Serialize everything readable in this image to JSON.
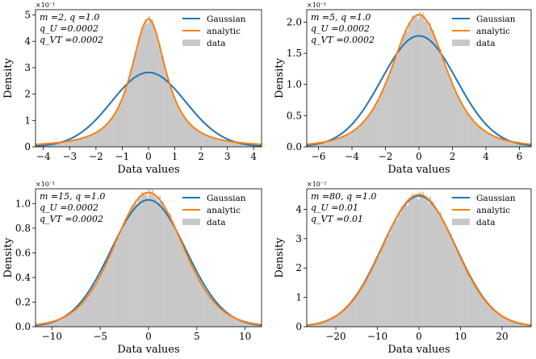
{
  "chart_data": [
    {
      "type": "line",
      "id": "panel-1",
      "annotation": [
        "m =2, q =1.0",
        "q_U =0.0002",
        "q_VT =0.0002"
      ],
      "multiplier": "×10⁻¹",
      "xlabel": "Data values",
      "ylabel": "Density",
      "xlim": [
        -4.3,
        4.3
      ],
      "ylim": [
        0,
        5.2
      ],
      "xticks": [
        -4,
        -3,
        -2,
        -1,
        0,
        1,
        2,
        3,
        4
      ],
      "yticks": [
        0,
        1,
        2,
        3,
        4,
        5
      ],
      "legend": [
        "Gaussian",
        "analytic",
        "data"
      ],
      "series": [
        {
          "name": "Gaussian",
          "kind": "gaussian",
          "sigma": 1.41,
          "peak": 2.82,
          "color": "#1f77b4"
        },
        {
          "name": "analytic",
          "kind": "heavy",
          "nu": 1.55,
          "scale": 0.75,
          "peak": 4.85,
          "color": "#ff7f0e"
        },
        {
          "name": "data",
          "kind": "hist",
          "color": "#c8c8c8"
        }
      ]
    },
    {
      "type": "line",
      "id": "panel-2",
      "annotation": [
        "m =5, q =1.0",
        "q_U =0.0002",
        "q_VT =0.0002"
      ],
      "multiplier": "×10⁻¹",
      "xlabel": "Data values",
      "ylabel": "Density",
      "xlim": [
        -6.7,
        6.7
      ],
      "ylim": [
        0,
        2.2
      ],
      "xticks": [
        -6,
        -4,
        -2,
        0,
        2,
        4,
        6
      ],
      "yticks": [
        0.0,
        0.5,
        1.0,
        1.5,
        2.0
      ],
      "legend": [
        "Gaussian",
        "analytic",
        "data"
      ],
      "series": [
        {
          "name": "Gaussian",
          "kind": "gaussian",
          "sigma": 2.24,
          "peak": 1.78,
          "color": "#1f77b4"
        },
        {
          "name": "analytic",
          "kind": "heavy",
          "nu": 4.0,
          "scale": 1.7,
          "peak": 2.12,
          "color": "#ff7f0e"
        },
        {
          "name": "data",
          "kind": "hist",
          "color": "#c8c8c8"
        }
      ]
    },
    {
      "type": "line",
      "id": "panel-3",
      "annotation": [
        "m =15, q =1.0",
        "q_U =0.0002",
        "q_VT =0.0002"
      ],
      "multiplier": "×10⁻¹",
      "xlabel": "Data values",
      "ylabel": "Density",
      "xlim": [
        -11.7,
        11.7
      ],
      "ylim": [
        0,
        1.12
      ],
      "xticks": [
        -10,
        -5,
        0,
        5,
        10
      ],
      "yticks": [
        0.0,
        0.2,
        0.4,
        0.6,
        0.8,
        1.0
      ],
      "legend": [
        "Gaussian",
        "analytic",
        "data"
      ],
      "series": [
        {
          "name": "Gaussian",
          "kind": "gaussian",
          "sigma": 3.87,
          "peak": 1.03,
          "color": "#1f77b4"
        },
        {
          "name": "analytic",
          "kind": "heavy",
          "nu": 14.0,
          "scale": 3.6,
          "peak": 1.09,
          "color": "#ff7f0e"
        },
        {
          "name": "data",
          "kind": "hist",
          "color": "#c8c8c8"
        }
      ]
    },
    {
      "type": "line",
      "id": "panel-4",
      "annotation": [
        "m =80, q =1.0",
        "q_U =0.01",
        "q_VT =0.01"
      ],
      "multiplier": "×10⁻²",
      "xlabel": "Data values",
      "ylabel": "Density",
      "xlim": [
        -27,
        27
      ],
      "ylim": [
        0,
        4.7
      ],
      "xticks": [
        -20,
        -10,
        0,
        10,
        20
      ],
      "yticks": [
        0,
        1,
        2,
        3,
        4
      ],
      "legend": [
        "Gaussian",
        "analytic",
        "data"
      ],
      "series": [
        {
          "name": "Gaussian",
          "kind": "gaussian",
          "sigma": 8.94,
          "peak": 4.46,
          "color": "#1f77b4"
        },
        {
          "name": "analytic",
          "kind": "heavy",
          "nu": 60.0,
          "scale": 8.8,
          "peak": 4.5,
          "color": "#ff7f0e"
        },
        {
          "name": "data",
          "kind": "hist",
          "color": "#c8c8c8"
        }
      ]
    }
  ]
}
